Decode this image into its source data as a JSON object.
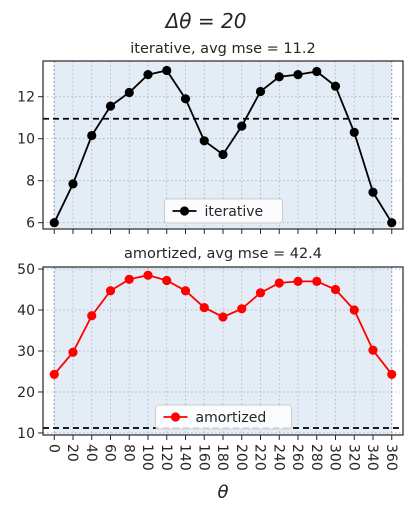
{
  "figure": {
    "suptitle": "Δθ = 20",
    "xlabel": "θ"
  },
  "chart_data": [
    {
      "type": "line",
      "title": "iterative, avg mse = 11.2",
      "x": [
        0,
        20,
        40,
        60,
        80,
        100,
        120,
        140,
        160,
        180,
        200,
        220,
        240,
        260,
        280,
        300,
        320,
        340,
        360
      ],
      "series": [
        {
          "name": "iterative",
          "color": "#000000",
          "marker": "circle",
          "values": [
            6.0,
            7.85,
            10.15,
            11.55,
            12.2,
            13.05,
            13.25,
            11.9,
            9.9,
            9.25,
            10.6,
            12.25,
            12.95,
            13.05,
            13.2,
            12.5,
            10.3,
            7.45,
            6.0
          ]
        }
      ],
      "hline": {
        "y": 10.95,
        "style": "dashed",
        "color": "#000000"
      },
      "xlim": [
        -12,
        372
      ],
      "ylim": [
        5.7,
        13.7
      ],
      "yticks": [
        6,
        8,
        10,
        12
      ],
      "xticks": [
        0,
        20,
        40,
        60,
        80,
        100,
        120,
        140,
        160,
        180,
        200,
        220,
        240,
        260,
        280,
        300,
        320,
        340,
        360
      ],
      "show_xticklabels": false,
      "grid": true,
      "legend": "bottom-center",
      "shaded_span": {
        "x": [
          0,
          360
        ],
        "color": "#dfe9f5"
      }
    },
    {
      "type": "line",
      "title": "amortized, avg mse = 42.4",
      "x": [
        0,
        20,
        40,
        60,
        80,
        100,
        120,
        140,
        160,
        180,
        200,
        220,
        240,
        260,
        280,
        300,
        320,
        340,
        360
      ],
      "series": [
        {
          "name": "amortized",
          "color": "#ff0000",
          "marker": "circle",
          "values": [
            24.3,
            29.7,
            38.6,
            44.7,
            47.5,
            48.5,
            47.2,
            44.7,
            40.6,
            38.3,
            40.3,
            44.2,
            46.6,
            47.0,
            47.0,
            45.0,
            40.0,
            30.2,
            24.3
          ]
        }
      ],
      "hline": {
        "y": 11.2,
        "style": "dashed",
        "color": "#000000"
      },
      "xlim": [
        -12,
        372
      ],
      "ylim": [
        9.5,
        50.5
      ],
      "yticks": [
        10,
        20,
        30,
        40,
        50
      ],
      "xticks": [
        0,
        20,
        40,
        60,
        80,
        100,
        120,
        140,
        160,
        180,
        200,
        220,
        240,
        260,
        280,
        300,
        320,
        340,
        360
      ],
      "xticklabels": [
        "0",
        "20",
        "40",
        "60",
        "80",
        "100",
        "120",
        "140",
        "160",
        "180",
        "200",
        "220",
        "240",
        "260",
        "280",
        "300",
        "320",
        "340",
        "360"
      ],
      "show_xticklabels": true,
      "xtick_rotation": "-90",
      "grid": true,
      "legend": "bottom-center",
      "shaded_span": {
        "x": [
          0,
          360
        ],
        "color": "#dfe9f5"
      }
    }
  ]
}
